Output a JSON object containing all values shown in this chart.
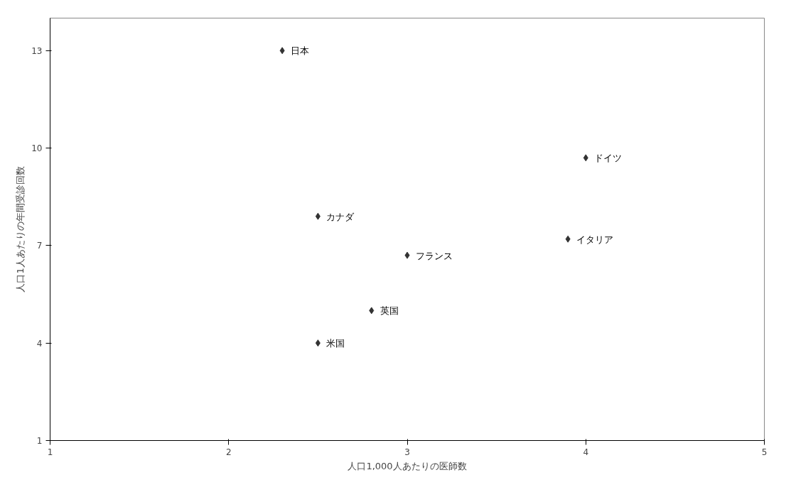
{
  "chart_data": {
    "type": "scatter",
    "xlabel": "人口1,000人あたりの医師数",
    "ylabel": "人口1人あたりの年間受診回数",
    "x": [
      2.3,
      4.0,
      2.5,
      3.9,
      3.0,
      2.8,
      2.5
    ],
    "values": [
      13,
      9.7,
      7.9,
      7.2,
      6.7,
      5.0,
      4.0
    ],
    "color": "#333333",
    "marker": "diamond",
    "xlim": [
      1,
      5
    ],
    "xticks": [
      1,
      2,
      3,
      4,
      5
    ],
    "ylim": [
      1,
      14
    ],
    "yticks": [
      1,
      4,
      7,
      10,
      13
    ],
    "grid": false,
    "annotations": [
      {
        "text": "日本",
        "x": 2.3,
        "y": 13
      },
      {
        "text": "ドイツ",
        "x": 4.0,
        "y": 9.7
      },
      {
        "text": "カナダ",
        "x": 2.5,
        "y": 7.9
      },
      {
        "text": "イタリア",
        "x": 3.9,
        "y": 7.2
      },
      {
        "text": "フランス",
        "x": 3.0,
        "y": 6.7
      },
      {
        "text": "英国",
        "x": 2.8,
        "y": 5.0
      },
      {
        "text": "米国",
        "x": 2.5,
        "y": 4.0
      }
    ]
  }
}
